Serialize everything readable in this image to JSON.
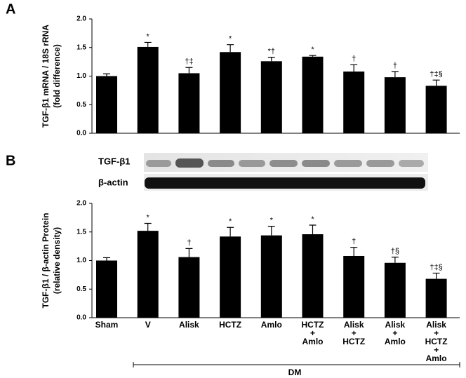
{
  "chart_data": [
    {
      "type": "bar",
      "panel": "A",
      "ylabel": [
        "TGF-β1 mRNA / 18S rRNA",
        "(fold difference)"
      ],
      "values": [
        1.0,
        1.51,
        1.05,
        1.42,
        1.26,
        1.34,
        1.08,
        0.98,
        0.83
      ],
      "errors": [
        0.04,
        0.08,
        0.1,
        0.13,
        0.07,
        0.02,
        0.12,
        0.1,
        0.1
      ],
      "annotations": [
        null,
        "*",
        "†‡",
        "*",
        "*†",
        "*",
        "†",
        "†",
        "†‡§"
      ],
      "color": "#000000",
      "ylim": [
        0,
        2
      ],
      "yticks": [
        {
          "value": 0,
          "label": "0.0"
        },
        {
          "value": 0.5,
          "label": "0.5"
        },
        {
          "value": 1,
          "label": "1.0"
        },
        {
          "value": 1.5,
          "label": "1.5"
        },
        {
          "value": 2,
          "label": "2.0"
        }
      ]
    },
    {
      "type": "bar",
      "panel": "B",
      "ylabel": [
        "TGF-β1 / β-actin Protein",
        "(relative density)"
      ],
      "blot_labels": [
        "TGF-β1",
        "β-actin"
      ],
      "categories": [
        [
          "Sham"
        ],
        [
          "V"
        ],
        [
          "Alisk"
        ],
        [
          "HCTZ"
        ],
        [
          "Amlo"
        ],
        [
          "HCTZ",
          "+",
          "Amlo"
        ],
        [
          "Alisk",
          "+",
          "HCTZ"
        ],
        [
          "Alisk",
          "+",
          "Amlo"
        ],
        [
          "Alisk",
          "+",
          "HCTZ",
          "+",
          "Amlo"
        ]
      ],
      "values": [
        1.0,
        1.52,
        1.06,
        1.42,
        1.44,
        1.46,
        1.08,
        0.96,
        0.68
      ],
      "errors": [
        0.05,
        0.13,
        0.15,
        0.16,
        0.16,
        0.16,
        0.15,
        0.1,
        0.1
      ],
      "annotations": [
        null,
        "*",
        "†",
        "*",
        "*",
        "*",
        "†",
        "†§",
        "†‡§"
      ],
      "color": "#000000",
      "group_label": "DM",
      "ylim": [
        0,
        2
      ],
      "yticks": [
        {
          "value": 0,
          "label": "0.0"
        },
        {
          "value": 0.5,
          "label": "0.5"
        },
        {
          "value": 1,
          "label": "1.0"
        },
        {
          "value": 1.5,
          "label": "1.5"
        },
        {
          "value": 2,
          "label": "2.0"
        }
      ]
    }
  ]
}
